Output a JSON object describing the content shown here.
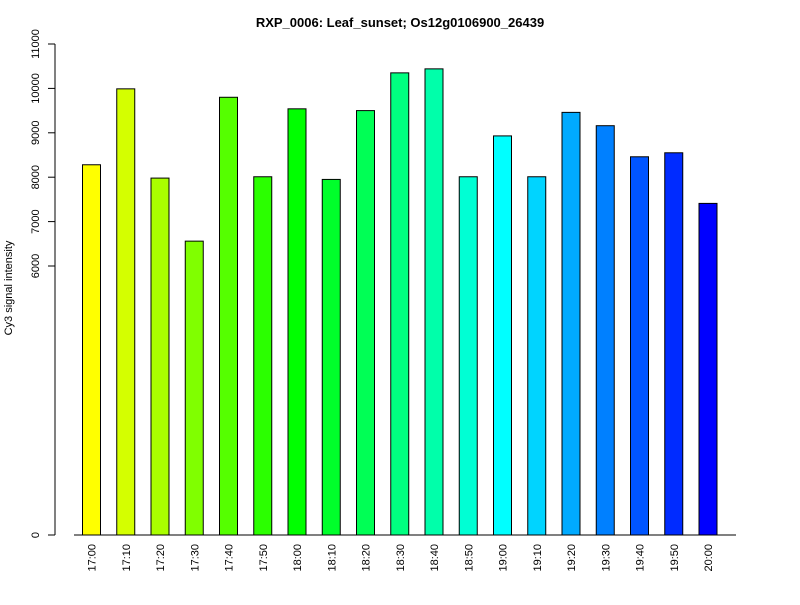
{
  "chart_data": {
    "type": "bar",
    "title": "RXP_0006: Leaf_sunset; Os12g0106900_26439",
    "xlabel": "",
    "ylabel": "Cy3 signal intensity",
    "y_tick_labels": [
      "0",
      "6000",
      "7000",
      "8000",
      "9000",
      "10000",
      "11000"
    ],
    "y_ticks": [
      0,
      6000,
      7000,
      8000,
      9000,
      10000,
      11000
    ],
    "y_axis_note": "axis break: scale compressed between 0 and 6000",
    "grid": false,
    "legend": "none",
    "categories": [
      "17:00",
      "17:10",
      "17:20",
      "17:30",
      "17:40",
      "17:50",
      "18:00",
      "18:10",
      "18:20",
      "18:30",
      "18:40",
      "18:50",
      "19:00",
      "19:10",
      "19:20",
      "19:30",
      "19:40",
      "19:50",
      "20:00"
    ],
    "values": [
      8280,
      9990,
      7980,
      6560,
      9800,
      8010,
      9540,
      7950,
      9500,
      10350,
      10440,
      8010,
      8930,
      8010,
      9460,
      9160,
      8460,
      8550,
      7410
    ],
    "colors": [
      "#FFFF00",
      "#D4FF00",
      "#AAFF00",
      "#80FF00",
      "#55FF00",
      "#2BFF00",
      "#00FF00",
      "#00FF2B",
      "#00FF55",
      "#00FF80",
      "#00FFAA",
      "#00FFD4",
      "#00FFFF",
      "#00D4FF",
      "#00AAFF",
      "#0080FF",
      "#0055FF",
      "#002BFF",
      "#0000FF"
    ]
  }
}
